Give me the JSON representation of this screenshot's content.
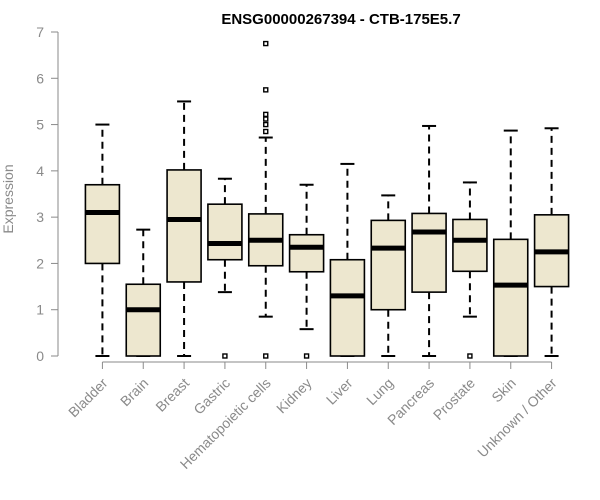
{
  "chart_data": {
    "type": "boxplot",
    "title": "ENSG00000267394 - CTB-175E5.7",
    "xlabel": "",
    "ylabel": "Expression",
    "ylim": [
      0,
      7
    ],
    "yticks": [
      0,
      1,
      2,
      3,
      4,
      5,
      6,
      7
    ],
    "colors": {
      "box_fill": "#ede7cf",
      "box_stroke": "#000000",
      "axis": "#8a8a8a"
    },
    "categories": [
      "Bladder",
      "Brain",
      "Breast",
      "Gastric",
      "Hematopoietic cells",
      "Kidney",
      "Liver",
      "Lung",
      "Pancreas",
      "Prostate",
      "Skin",
      "Unknown / Other"
    ],
    "boxes": [
      {
        "category": "Bladder",
        "whisker_low": 0,
        "q1": 2.0,
        "median": 3.1,
        "q3": 3.7,
        "whisker_high": 5.0,
        "outliers": []
      },
      {
        "category": "Brain",
        "whisker_low": 0,
        "q1": 0,
        "median": 1.0,
        "q3": 1.55,
        "whisker_high": 2.73,
        "outliers": []
      },
      {
        "category": "Breast",
        "whisker_low": 0,
        "q1": 1.6,
        "median": 2.95,
        "q3": 4.02,
        "whisker_high": 5.5,
        "outliers": []
      },
      {
        "category": "Gastric",
        "whisker_low": 1.38,
        "q1": 2.08,
        "median": 2.43,
        "q3": 3.28,
        "whisker_high": 3.83,
        "outliers": [
          0
        ]
      },
      {
        "category": "Hematopoietic cells",
        "whisker_low": 0.85,
        "q1": 1.95,
        "median": 2.5,
        "q3": 3.07,
        "whisker_high": 4.72,
        "outliers": [
          0,
          4.85,
          5.0,
          5.12,
          5.22,
          5.75,
          6.75
        ]
      },
      {
        "category": "Kidney",
        "whisker_low": 0.58,
        "q1": 1.82,
        "median": 2.35,
        "q3": 2.62,
        "whisker_high": 3.7,
        "outliers": [
          0
        ]
      },
      {
        "category": "Liver",
        "whisker_low": 0,
        "q1": 0,
        "median": 1.3,
        "q3": 2.08,
        "whisker_high": 4.15,
        "outliers": []
      },
      {
        "category": "Lung",
        "whisker_low": 0,
        "q1": 1.0,
        "median": 2.33,
        "q3": 2.93,
        "whisker_high": 3.47,
        "outliers": []
      },
      {
        "category": "Pancreas",
        "whisker_low": 0,
        "q1": 1.38,
        "median": 2.68,
        "q3": 3.08,
        "whisker_high": 4.97,
        "outliers": []
      },
      {
        "category": "Prostate",
        "whisker_low": 0.85,
        "q1": 1.83,
        "median": 2.5,
        "q3": 2.95,
        "whisker_high": 3.75,
        "outliers": [
          0
        ]
      },
      {
        "category": "Skin",
        "whisker_low": 0,
        "q1": 0,
        "median": 1.53,
        "q3": 2.52,
        "whisker_high": 4.87,
        "outliers": []
      },
      {
        "category": "Unknown / Other",
        "whisker_low": 0,
        "q1": 1.5,
        "median": 2.25,
        "q3": 3.05,
        "whisker_high": 4.92,
        "outliers": []
      }
    ]
  }
}
